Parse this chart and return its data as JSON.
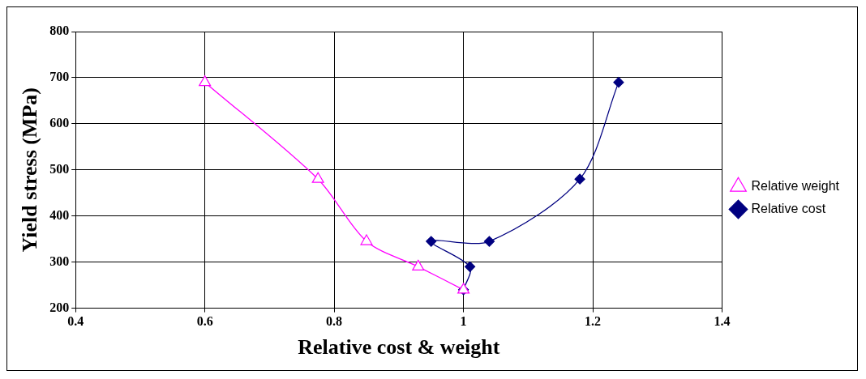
{
  "chart_data": {
    "type": "line",
    "xlabel": "Relative cost & weight",
    "ylabel": "Yield stress (MPa)",
    "xlim": [
      0.4,
      1.4
    ],
    "xticks": [
      0.4,
      0.6,
      0.8,
      1,
      1.2,
      1.4
    ],
    "ylim": [
      200,
      800
    ],
    "yticks": [
      200,
      300,
      400,
      500,
      600,
      700,
      800
    ],
    "grid": true,
    "legend": "right",
    "series": [
      {
        "name": "Relative cost",
        "color": "#000080",
        "marker": "diamond",
        "x": [
          1.0,
          1.01,
          0.95,
          1.04,
          1.18,
          1.24
        ],
        "values": [
          240,
          290,
          345,
          345,
          480,
          690
        ]
      },
      {
        "name": "Relative weight",
        "color": "#ff00ff",
        "marker": "triangle",
        "x": [
          1.0,
          0.93,
          0.85,
          0.775,
          0.6
        ],
        "values": [
          240,
          290,
          345,
          480,
          690
        ]
      }
    ]
  }
}
